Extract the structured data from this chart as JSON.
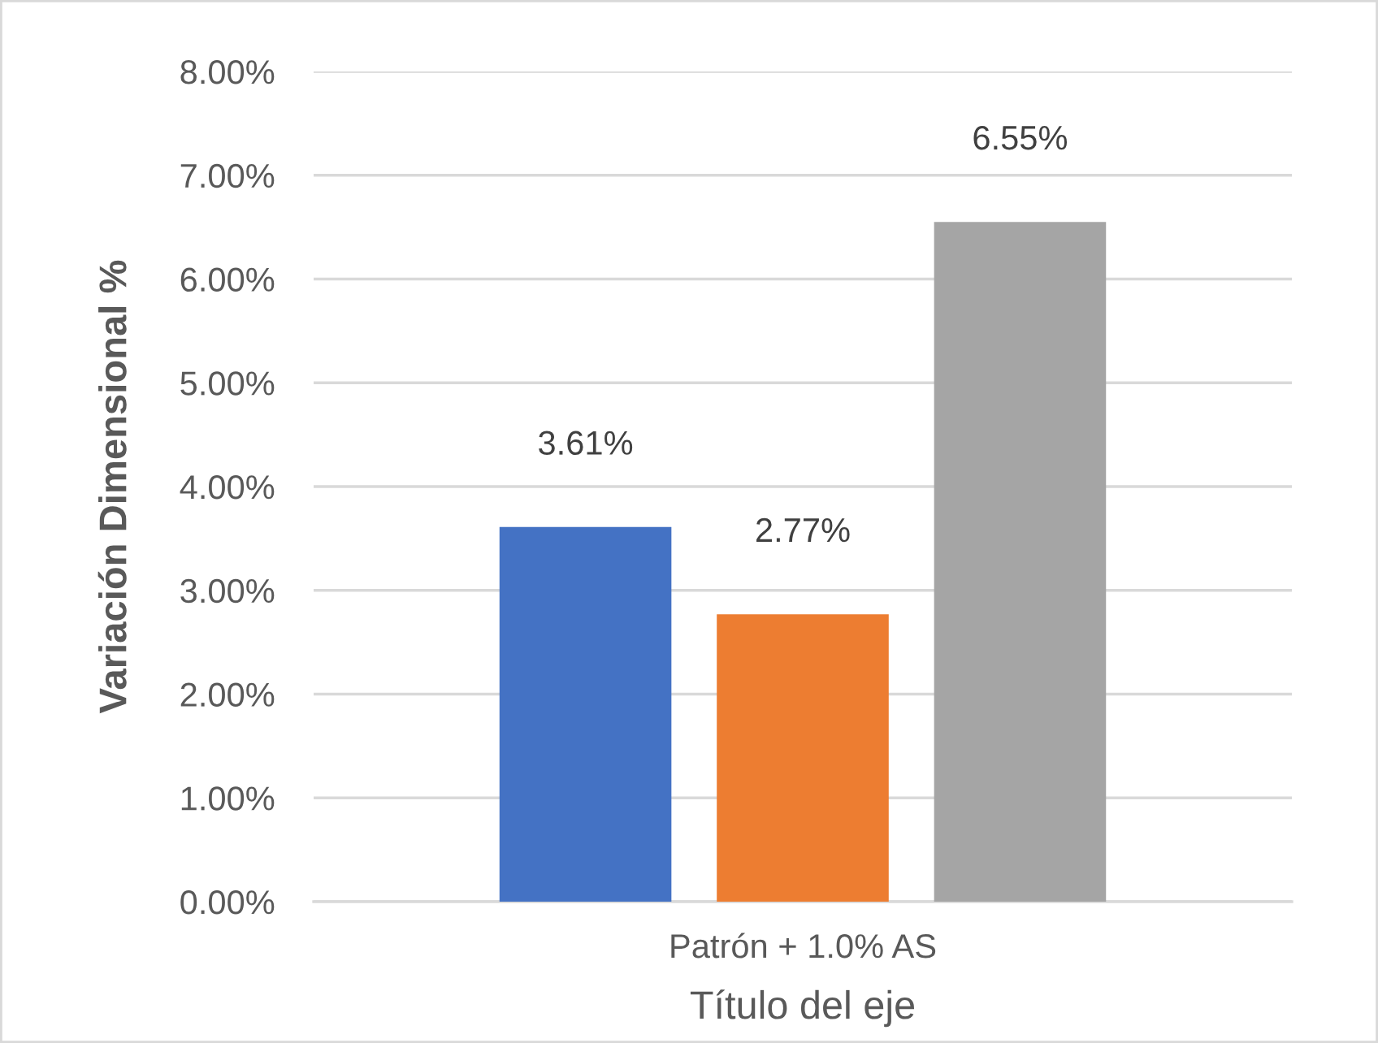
{
  "chart_data": {
    "type": "bar",
    "xlabel": "Título del eje",
    "ylabel": "Variación Dimensional %",
    "categories": [
      "Patrón + 1.0% AS"
    ],
    "series": [
      {
        "color": "#4472c4",
        "values": [
          3.61
        ],
        "value_labels": [
          "3.61%"
        ]
      },
      {
        "color": "#ed7d31",
        "values": [
          2.77
        ],
        "value_labels": [
          "2.77%"
        ]
      },
      {
        "color": "#a5a5a5",
        "values": [
          6.55
        ],
        "value_labels": [
          "6.55%"
        ]
      }
    ],
    "ylim": [
      0,
      8
    ],
    "yticks": [
      {
        "value": 0,
        "label": "0.00%"
      },
      {
        "value": 1,
        "label": "1.00%"
      },
      {
        "value": 2,
        "label": "2.00%"
      },
      {
        "value": 3,
        "label": "3.00%"
      },
      {
        "value": 4,
        "label": "4.00%"
      },
      {
        "value": 5,
        "label": "5.00%"
      },
      {
        "value": 6,
        "label": "6.00%"
      },
      {
        "value": 7,
        "label": "7.00%"
      },
      {
        "value": 8,
        "label": "8.00%"
      }
    ],
    "grid": "y"
  }
}
